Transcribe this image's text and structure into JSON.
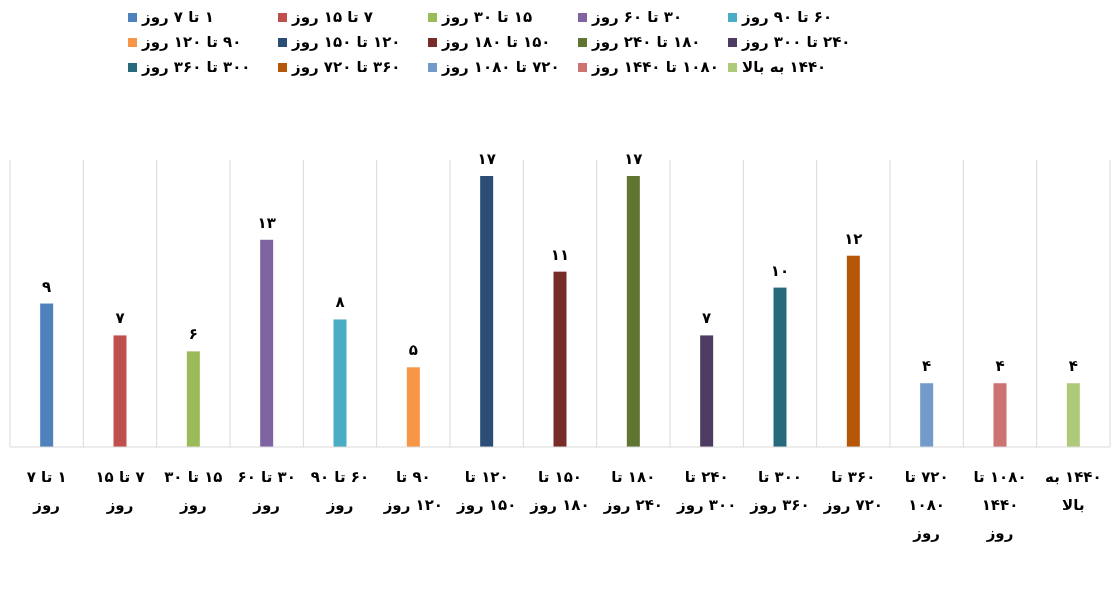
{
  "chart_data": {
    "type": "bar",
    "categories": [
      "۱ تا ۷ روز",
      "۷ تا ۱۵ روز",
      "۱۵ تا ۳۰ روز",
      "۳۰ تا ۶۰ روز",
      "۶۰ تا ۹۰ روز",
      "۹۰ تا ۱۲۰ روز",
      "۱۲۰ تا ۱۵۰ روز",
      "۱۵۰ تا ۱۸۰ روز",
      "۱۸۰ تا ۲۴۰ روز",
      "۲۴۰ تا ۳۰۰ روز",
      "۳۰۰ تا ۳۶۰ روز",
      "۳۶۰ تا ۷۲۰ روز",
      "۷۲۰ تا ۱۰۸۰ روز",
      "۱۰۸۰ تا ۱۴۴۰ روز",
      "۱۴۴۰ به بالا"
    ],
    "series": [
      {
        "name": "۱ تا ۷ روز",
        "color": "#4f81bd",
        "values": [
          9,
          null,
          null,
          null,
          null,
          null,
          null,
          null,
          null,
          null,
          null,
          null,
          null,
          null,
          null
        ],
        "value_labels": [
          "۹",
          null,
          null,
          null,
          null,
          null,
          null,
          null,
          null,
          null,
          null,
          null,
          null,
          null,
          null
        ]
      },
      {
        "name": "۷ تا ۱۵ روز",
        "color": "#c0504d",
        "values": [
          null,
          7,
          null,
          null,
          null,
          null,
          null,
          null,
          null,
          null,
          null,
          null,
          null,
          null,
          null
        ],
        "value_labels": [
          null,
          "۷",
          null,
          null,
          null,
          null,
          null,
          null,
          null,
          null,
          null,
          null,
          null,
          null,
          null
        ]
      },
      {
        "name": "۱۵ تا ۳۰ روز",
        "color": "#9bbb59",
        "values": [
          null,
          null,
          6,
          null,
          null,
          null,
          null,
          null,
          null,
          null,
          null,
          null,
          null,
          null,
          null
        ],
        "value_labels": [
          null,
          null,
          "۶",
          null,
          null,
          null,
          null,
          null,
          null,
          null,
          null,
          null,
          null,
          null,
          null
        ]
      },
      {
        "name": "۳۰ تا ۶۰ روز",
        "color": "#8064a2",
        "values": [
          null,
          null,
          null,
          13,
          null,
          null,
          null,
          null,
          null,
          null,
          null,
          null,
          null,
          null,
          null
        ],
        "value_labels": [
          null,
          null,
          null,
          "۱۳",
          null,
          null,
          null,
          null,
          null,
          null,
          null,
          null,
          null,
          null,
          null
        ]
      },
      {
        "name": "۶۰ تا ۹۰ روز",
        "color": "#4bacc6",
        "values": [
          null,
          null,
          null,
          null,
          8,
          null,
          null,
          null,
          null,
          null,
          null,
          null,
          null,
          null,
          null
        ],
        "value_labels": [
          null,
          null,
          null,
          null,
          "۸",
          null,
          null,
          null,
          null,
          null,
          null,
          null,
          null,
          null,
          null
        ]
      },
      {
        "name": "۹۰ تا ۱۲۰ روز",
        "color": "#f79646",
        "values": [
          null,
          null,
          null,
          null,
          null,
          5,
          null,
          null,
          null,
          null,
          null,
          null,
          null,
          null,
          null
        ],
        "value_labels": [
          null,
          null,
          null,
          null,
          null,
          "۵",
          null,
          null,
          null,
          null,
          null,
          null,
          null,
          null,
          null
        ]
      },
      {
        "name": "۱۲۰ تا ۱۵۰ روز",
        "color": "#2c4d75",
        "values": [
          null,
          null,
          null,
          null,
          null,
          null,
          17,
          null,
          null,
          null,
          null,
          null,
          null,
          null,
          null
        ],
        "value_labels": [
          null,
          null,
          null,
          null,
          null,
          null,
          "۱۷",
          null,
          null,
          null,
          null,
          null,
          null,
          null,
          null
        ]
      },
      {
        "name": "۱۵۰ تا ۱۸۰ روز",
        "color": "#772c2a",
        "values": [
          null,
          null,
          null,
          null,
          null,
          null,
          null,
          11,
          null,
          null,
          null,
          null,
          null,
          null,
          null
        ],
        "value_labels": [
          null,
          null,
          null,
          null,
          null,
          null,
          null,
          "۱۱",
          null,
          null,
          null,
          null,
          null,
          null,
          null
        ]
      },
      {
        "name": "۱۸۰ تا ۲۴۰ روز",
        "color": "#5f7530",
        "values": [
          null,
          null,
          null,
          null,
          null,
          null,
          null,
          null,
          17,
          null,
          null,
          null,
          null,
          null,
          null
        ],
        "value_labels": [
          null,
          null,
          null,
          null,
          null,
          null,
          null,
          null,
          "۱۷",
          null,
          null,
          null,
          null,
          null,
          null
        ]
      },
      {
        "name": "۲۴۰ تا ۳۰۰ روز",
        "color": "#4d3b62",
        "values": [
          null,
          null,
          null,
          null,
          null,
          null,
          null,
          null,
          null,
          7,
          null,
          null,
          null,
          null,
          null
        ],
        "value_labels": [
          null,
          null,
          null,
          null,
          null,
          null,
          null,
          null,
          null,
          "۷",
          null,
          null,
          null,
          null,
          null
        ]
      },
      {
        "name": "۳۰۰ تا ۳۶۰ روز",
        "color": "#276a7c",
        "values": [
          null,
          null,
          null,
          null,
          null,
          null,
          null,
          null,
          null,
          null,
          10,
          null,
          null,
          null,
          null
        ],
        "value_labels": [
          null,
          null,
          null,
          null,
          null,
          null,
          null,
          null,
          null,
          null,
          "۱۰",
          null,
          null,
          null,
          null
        ]
      },
      {
        "name": "۳۶۰ تا ۷۲۰ روز",
        "color": "#b65708",
        "values": [
          null,
          null,
          null,
          null,
          null,
          null,
          null,
          null,
          null,
          null,
          null,
          12,
          null,
          null,
          null
        ],
        "value_labels": [
          null,
          null,
          null,
          null,
          null,
          null,
          null,
          null,
          null,
          null,
          null,
          "۱۲",
          null,
          null,
          null
        ]
      },
      {
        "name": "۷۲۰ تا ۱۰۸۰ روز",
        "color": "#729aca",
        "values": [
          null,
          null,
          null,
          null,
          null,
          null,
          null,
          null,
          null,
          null,
          null,
          null,
          4,
          null,
          null
        ],
        "value_labels": [
          null,
          null,
          null,
          null,
          null,
          null,
          null,
          null,
          null,
          null,
          null,
          null,
          "۴",
          null,
          null
        ]
      },
      {
        "name": "۱۰۸۰ تا ۱۴۴۰ روز",
        "color": "#cd7371",
        "values": [
          null,
          null,
          null,
          null,
          null,
          null,
          null,
          null,
          null,
          null,
          null,
          null,
          null,
          4,
          null
        ],
        "value_labels": [
          null,
          null,
          null,
          null,
          null,
          null,
          null,
          null,
          null,
          null,
          null,
          null,
          null,
          "۴",
          null
        ]
      },
      {
        "name": "۱۴۴۰ به بالا",
        "color": "#afc97a",
        "values": [
          null,
          null,
          null,
          null,
          null,
          null,
          null,
          null,
          null,
          null,
          null,
          null,
          null,
          null,
          4
        ],
        "value_labels": [
          null,
          null,
          null,
          null,
          null,
          null,
          null,
          null,
          null,
          null,
          null,
          null,
          null,
          null,
          "۴"
        ]
      }
    ],
    "grid": "x",
    "legend": "top"
  }
}
